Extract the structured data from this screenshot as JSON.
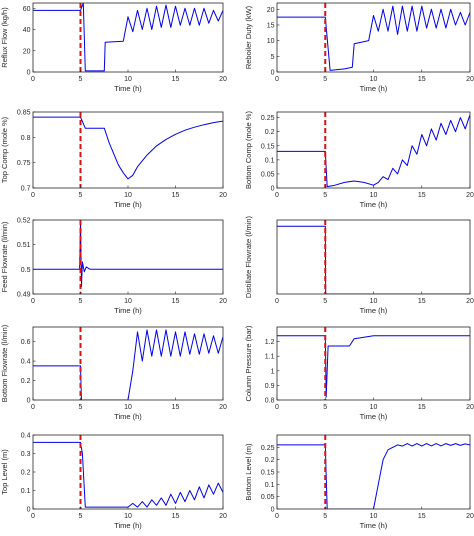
{
  "chart_data": [
    {
      "type": "line",
      "xlabel": "Time (h)",
      "ylabel": "Reflux Flow (kg/h)",
      "xlim": [
        0,
        20
      ],
      "ylim": [
        0,
        65
      ],
      "xticks": [
        "0",
        "5",
        "10",
        "15",
        "20"
      ],
      "yticks": [
        "0",
        "20",
        "40",
        "60"
      ],
      "step_time": 5,
      "series": [
        {
          "x": [
            0,
            5,
            5.3,
            5.5,
            7.5,
            7.6,
            9.5,
            10,
            10.5,
            11,
            11.5,
            12,
            12.5,
            13,
            13.5,
            14,
            14.5,
            15,
            15.5,
            16,
            16.5,
            17,
            17.5,
            18,
            18.5,
            19,
            19.5,
            20
          ],
          "y": [
            58,
            58,
            65,
            1,
            1,
            28,
            29,
            52,
            38,
            58,
            40,
            60,
            40,
            62,
            42,
            63,
            42,
            62,
            44,
            60,
            44,
            60,
            44,
            60,
            46,
            58,
            48,
            58
          ]
        }
      ]
    },
    {
      "type": "line",
      "xlabel": "Time (h)",
      "ylabel": "Reboiler Duty (kW)",
      "xlim": [
        0,
        20
      ],
      "ylim": [
        0,
        22
      ],
      "xticks": [
        "0",
        "5",
        "10",
        "15",
        "20"
      ],
      "yticks": [
        "0",
        "5",
        "10",
        "15",
        "20"
      ],
      "step_time": 5,
      "series": [
        {
          "x": [
            0,
            5,
            5.5,
            7,
            7.8,
            8,
            9.5,
            10,
            10.5,
            11,
            11.5,
            12,
            12.5,
            13,
            13.5,
            14,
            14.5,
            15,
            15.5,
            16,
            16.5,
            17,
            17.5,
            18,
            18.5,
            19,
            19.5,
            20
          ],
          "y": [
            17.5,
            17.5,
            0.5,
            1,
            1.5,
            9,
            10,
            18,
            13,
            20,
            13,
            21,
            12,
            21,
            13,
            21,
            13,
            21,
            14,
            20,
            14,
            20,
            14,
            20,
            15,
            19,
            15,
            19
          ]
        }
      ]
    },
    {
      "type": "line",
      "xlabel": "Time (h)",
      "ylabel": "Top Comp (mole %)",
      "xlim": [
        0,
        20
      ],
      "ylim": [
        0.7,
        0.85
      ],
      "xticks": [
        "0",
        "5",
        "10",
        "15",
        "20"
      ],
      "yticks": [
        "0.7",
        "0.75",
        "0.8",
        "0.85"
      ],
      "step_time": 5,
      "series": [
        {
          "x": [
            0,
            5,
            5.5,
            7.5,
            8,
            9,
            9.5,
            10,
            10.5,
            11,
            12,
            13,
            14,
            15,
            16,
            17,
            18,
            19,
            20
          ],
          "y": [
            0.84,
            0.84,
            0.818,
            0.818,
            0.79,
            0.745,
            0.73,
            0.718,
            0.725,
            0.742,
            0.765,
            0.783,
            0.796,
            0.806,
            0.814,
            0.82,
            0.825,
            0.829,
            0.832
          ]
        }
      ]
    },
    {
      "type": "line",
      "xlabel": "Time (h)",
      "ylabel": "Bottom Comp (mole %)",
      "xlim": [
        0,
        20
      ],
      "ylim": [
        0,
        0.27
      ],
      "xticks": [
        "0",
        "5",
        "10",
        "15",
        "20"
      ],
      "yticks": [
        "0",
        "0.05",
        "0.1",
        "0.15",
        "0.2",
        "0.25"
      ],
      "step_time": 5,
      "series": [
        {
          "x": [
            0,
            5,
            5.2,
            6,
            7,
            8,
            9,
            10,
            10.5,
            11,
            11.5,
            12,
            12.5,
            13,
            13.5,
            14,
            14.5,
            15,
            15.5,
            16,
            16.5,
            17,
            17.5,
            18,
            18.5,
            19,
            19.5,
            20
          ],
          "y": [
            0.13,
            0.13,
            0.005,
            0.01,
            0.02,
            0.025,
            0.02,
            0.01,
            0.02,
            0.04,
            0.03,
            0.07,
            0.05,
            0.1,
            0.08,
            0.15,
            0.12,
            0.19,
            0.15,
            0.21,
            0.17,
            0.23,
            0.19,
            0.24,
            0.2,
            0.25,
            0.21,
            0.26
          ]
        }
      ]
    },
    {
      "type": "line",
      "xlabel": "Time (h)",
      "ylabel": "Feed Flowrate (l/min)",
      "xlim": [
        0,
        20
      ],
      "ylim": [
        0.49,
        0.52
      ],
      "xticks": [
        "0",
        "5",
        "10",
        "15",
        "20"
      ],
      "yticks": [
        "0.49",
        "0.5",
        "0.51",
        "0.52"
      ],
      "step_time": 5,
      "series": [
        {
          "x": [
            0,
            4.9,
            5,
            5.1,
            5.2,
            5.4,
            5.6,
            6,
            8,
            12,
            16,
            20
          ],
          "y": [
            0.5,
            0.5,
            0.52,
            0.493,
            0.503,
            0.499,
            0.501,
            0.5,
            0.5,
            0.5,
            0.5,
            0.5
          ]
        }
      ]
    },
    {
      "type": "line",
      "xlabel": "Time (h)",
      "ylabel": "Distillate Flowrate (l/min)",
      "xlim": [
        0,
        20
      ],
      "ylim": [
        0,
        0.18
      ],
      "xticks": [
        "0",
        "5",
        "10",
        "15",
        "20"
      ],
      "yticks": [],
      "step_time": 5,
      "series": [
        {
          "x": [
            0,
            5,
            5.05,
            20
          ],
          "y": [
            0.165,
            0.165,
            0,
            0
          ]
        }
      ]
    },
    {
      "type": "line",
      "xlabel": "Time (h)",
      "ylabel": "Bottom Flowrate (l/min)",
      "xlim": [
        0,
        20
      ],
      "ylim": [
        0,
        0.75
      ],
      "xticks": [
        "0",
        "5",
        "10",
        "15",
        "20"
      ],
      "yticks": [
        "0",
        "0.2",
        "0.4",
        "0.6"
      ],
      "step_time": 5,
      "series": [
        {
          "x": [
            0,
            5,
            5.1,
            10,
            10.5,
            11,
            11.5,
            12,
            12.5,
            13,
            13.5,
            14,
            14.5,
            15,
            15.5,
            16,
            16.5,
            17,
            17.5,
            18,
            18.5,
            19,
            19.5,
            20
          ],
          "y": [
            0.35,
            0.35,
            0,
            0,
            0.3,
            0.7,
            0.4,
            0.72,
            0.45,
            0.72,
            0.45,
            0.72,
            0.45,
            0.7,
            0.45,
            0.7,
            0.47,
            0.68,
            0.47,
            0.68,
            0.48,
            0.66,
            0.48,
            0.65
          ]
        }
      ]
    },
    {
      "type": "line",
      "xlabel": "Time (h)",
      "ylabel": "Column Pressure (bar)",
      "xlim": [
        0,
        20
      ],
      "ylim": [
        0.8,
        1.3
      ],
      "xticks": [
        "0",
        "5",
        "10",
        "15",
        "20"
      ],
      "yticks": [
        "0.8",
        "0.9",
        "1",
        "1.1",
        "1.2"
      ],
      "step_time": 5,
      "series": [
        {
          "x": [
            0,
            5,
            5.1,
            5.3,
            7.5,
            8,
            9,
            10,
            11,
            12,
            13,
            14,
            15,
            16,
            17,
            18,
            19,
            20
          ],
          "y": [
            1.24,
            1.24,
            0.82,
            1.17,
            1.17,
            1.22,
            1.23,
            1.24,
            1.24,
            1.24,
            1.24,
            1.24,
            1.24,
            1.24,
            1.24,
            1.24,
            1.24,
            1.24
          ]
        }
      ]
    },
    {
      "type": "line",
      "xlabel": "Time (h)",
      "ylabel": "Top Level (m)",
      "xlim": [
        0,
        20
      ],
      "ylim": [
        0,
        0.4
      ],
      "xticks": [
        "0",
        "5",
        "10",
        "15",
        "20"
      ],
      "yticks": [
        "0",
        "0.1",
        "0.2",
        "0.3",
        "0.4"
      ],
      "step_time": 5,
      "series": [
        {
          "x": [
            0,
            5,
            5.2,
            5.5,
            6,
            8,
            10,
            10.5,
            11,
            11.5,
            12,
            12.5,
            13,
            13.5,
            14,
            14.5,
            15,
            15.5,
            16,
            16.5,
            17,
            17.5,
            18,
            18.5,
            19,
            19.5,
            20
          ],
          "y": [
            0.36,
            0.36,
            0.3,
            0.01,
            0.01,
            0.01,
            0.01,
            0.03,
            0.01,
            0.04,
            0.01,
            0.05,
            0.02,
            0.06,
            0.02,
            0.08,
            0.03,
            0.09,
            0.04,
            0.1,
            0.05,
            0.12,
            0.06,
            0.13,
            0.08,
            0.14,
            0.09
          ]
        }
      ]
    },
    {
      "type": "line",
      "xlabel": "Time (h)",
      "ylabel": "Bottom Level (m)",
      "xlim": [
        0,
        20
      ],
      "ylim": [
        0,
        0.3
      ],
      "xticks": [
        "0",
        "5",
        "10",
        "15",
        "20"
      ],
      "yticks": [
        "0",
        "0.05",
        "0.1",
        "0.15",
        "0.2",
        "0.25"
      ],
      "step_time": 5,
      "series": [
        {
          "x": [
            0,
            5,
            5.2,
            10,
            10.5,
            11,
            11.5,
            12,
            12.5,
            13,
            13.5,
            14,
            14.5,
            15,
            15.5,
            16,
            16.5,
            17,
            17.5,
            18,
            18.5,
            19,
            19.5,
            20
          ],
          "y": [
            0.26,
            0.26,
            0,
            0,
            0.1,
            0.2,
            0.24,
            0.25,
            0.26,
            0.255,
            0.265,
            0.255,
            0.265,
            0.255,
            0.265,
            0.256,
            0.265,
            0.256,
            0.265,
            0.258,
            0.265,
            0.258,
            0.264,
            0.26
          ]
        }
      ]
    }
  ]
}
